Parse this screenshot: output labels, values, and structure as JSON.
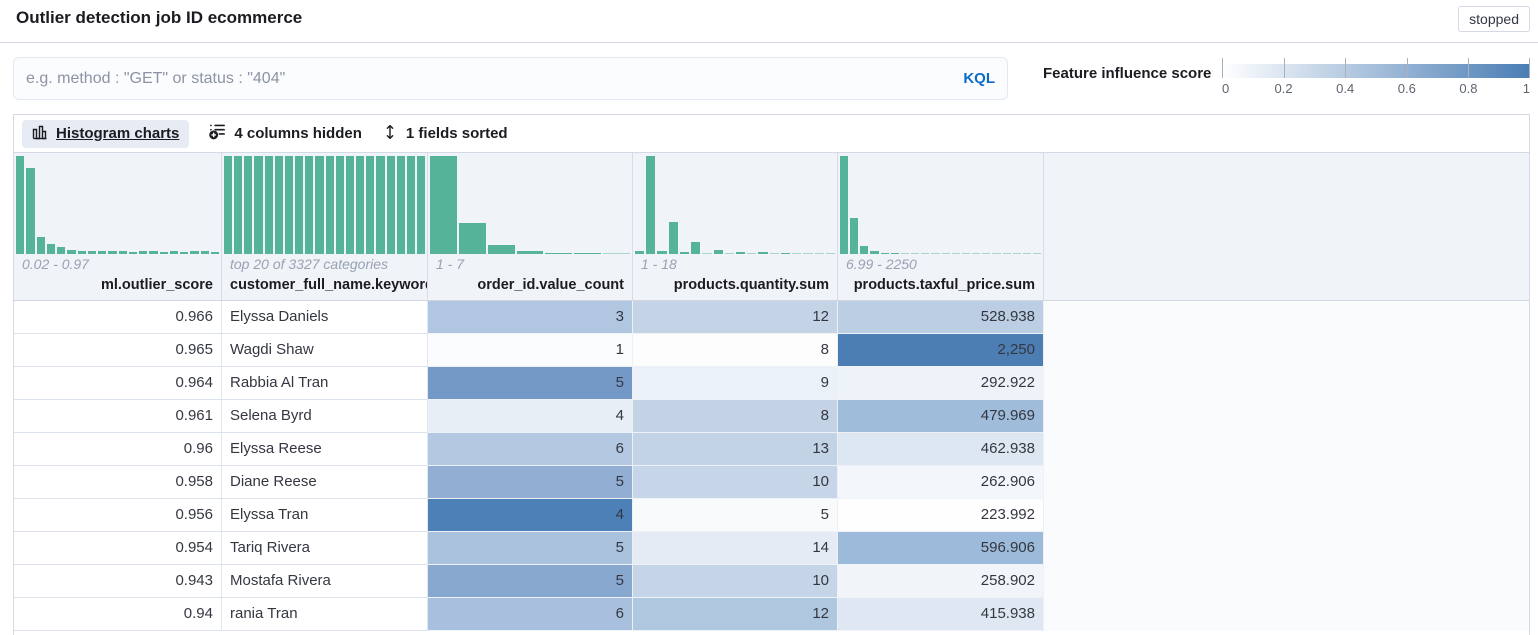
{
  "header": {
    "title": "Outlier detection job ID ecommerce",
    "status_badge": "stopped"
  },
  "query_bar": {
    "placeholder": "e.g. method : \"GET\" or status : \"404\"",
    "language": "KQL"
  },
  "legend": {
    "label": "Feature influence score",
    "ticks": [
      "0",
      "0.2",
      "0.4",
      "0.6",
      "0.8",
      "1"
    ],
    "gradient_start": "#ffffff",
    "gradient_end": "#4a7db5"
  },
  "toolbar": {
    "histogram_button": "Histogram charts",
    "columns_hidden": "4 columns hidden",
    "fields_sorted": "1 fields sorted"
  },
  "grid": {
    "bar_color": "#54b399",
    "columns": [
      {
        "label": "ml.outlier_score",
        "range": "0.02 - 0.97",
        "histogram": [
          100,
          88,
          17,
          10,
          7,
          4.5,
          3.5,
          3,
          2.8,
          2.6,
          2.6,
          2.2,
          2.6,
          2.6,
          2.2,
          2.6,
          2.2,
          2.6,
          2.6,
          1.6
        ]
      },
      {
        "label": "customer_full_name.keyword",
        "range": "top 20 of 3327 categories",
        "histogram": [
          100,
          100,
          100,
          100,
          100,
          100,
          100,
          100,
          100,
          100,
          100,
          100,
          100,
          100,
          100,
          100,
          100,
          100,
          100,
          100
        ]
      },
      {
        "label": "order_id.value_count",
        "range": "1 - 7",
        "histogram": [
          100,
          32,
          9,
          3.5,
          1.5,
          1,
          0.7
        ]
      },
      {
        "label": "products.quantity.sum",
        "range": "1 - 18",
        "histogram": [
          3,
          100,
          3,
          33,
          2,
          12,
          0.8,
          4,
          0.5,
          2.5,
          0.4,
          1.6,
          0.3,
          1.2,
          0.3,
          0.9,
          0.2,
          0.5
        ]
      },
      {
        "label": "products.taxful_price.sum",
        "range": "6.99 - 2250",
        "histogram": [
          100,
          37,
          8,
          3,
          1.5,
          1,
          0.2,
          0.2,
          0.2,
          0.2,
          0.2,
          0.2,
          0.2,
          0.2,
          0.2,
          0.2,
          0.2,
          0.2,
          0.2,
          0.8
        ]
      }
    ],
    "rows": [
      {
        "cells": [
          {
            "v": "0.966",
            "bg": "#ffffff"
          },
          {
            "v": "Elyssa Daniels",
            "bg": "#ffffff"
          },
          {
            "v": "3",
            "bg": "#b0c6e1"
          },
          {
            "v": "12",
            "bg": "#c4d3e6"
          },
          {
            "v": "528.938",
            "bg": "#bccee4"
          }
        ]
      },
      {
        "cells": [
          {
            "v": "0.965",
            "bg": "#ffffff"
          },
          {
            "v": "Wagdi Shaw",
            "bg": "#ffffff"
          },
          {
            "v": "1",
            "bg": "#fbfcfe"
          },
          {
            "v": "8",
            "bg": "#fdfdfe"
          },
          {
            "v": "2,250",
            "bg": "#4c7eb4"
          }
        ]
      },
      {
        "cells": [
          {
            "v": "0.964",
            "bg": "#ffffff"
          },
          {
            "v": "Rabbia Al Tran",
            "bg": "#ffffff"
          },
          {
            "v": "5",
            "bg": "#7599c7"
          },
          {
            "v": "9",
            "bg": "#ebf1f8"
          },
          {
            "v": "292.922",
            "bg": "#eef3f9"
          }
        ]
      },
      {
        "cells": [
          {
            "v": "0.961",
            "bg": "#ffffff"
          },
          {
            "v": "Selena Byrd",
            "bg": "#ffffff"
          },
          {
            "v": "4",
            "bg": "#e7eef6"
          },
          {
            "v": "8",
            "bg": "#c3d2e5"
          },
          {
            "v": "479.969",
            "bg": "#a0bcdb"
          }
        ]
      },
      {
        "cells": [
          {
            "v": "0.96",
            "bg": "#ffffff"
          },
          {
            "v": "Elyssa Reese",
            "bg": "#ffffff"
          },
          {
            "v": "6",
            "bg": "#b4c9e1"
          },
          {
            "v": "13",
            "bg": "#c2d3e6"
          },
          {
            "v": "462.938",
            "bg": "#dde7f2"
          }
        ]
      },
      {
        "cells": [
          {
            "v": "0.958",
            "bg": "#ffffff"
          },
          {
            "v": "Diane Reese",
            "bg": "#ffffff"
          },
          {
            "v": "5",
            "bg": "#92afd3"
          },
          {
            "v": "10",
            "bg": "#c6d5e7"
          },
          {
            "v": "262.906",
            "bg": "#f3f6fa"
          }
        ]
      },
      {
        "cells": [
          {
            "v": "0.956",
            "bg": "#ffffff"
          },
          {
            "v": "Elyssa Tran",
            "bg": "#ffffff"
          },
          {
            "v": "4",
            "bg": "#4d80b6"
          },
          {
            "v": "5",
            "bg": "#f8fafc"
          },
          {
            "v": "223.992",
            "bg": "#fefefe"
          }
        ]
      },
      {
        "cells": [
          {
            "v": "0.954",
            "bg": "#ffffff"
          },
          {
            "v": "Tariq Rivera",
            "bg": "#ffffff"
          },
          {
            "v": "5",
            "bg": "#aac2de"
          },
          {
            "v": "14",
            "bg": "#e4ebf4"
          },
          {
            "v": "596.906",
            "bg": "#9cbbda"
          }
        ]
      },
      {
        "cells": [
          {
            "v": "0.943",
            "bg": "#ffffff"
          },
          {
            "v": "Mostafa Rivera",
            "bg": "#ffffff"
          },
          {
            "v": "5",
            "bg": "#88a8d0"
          },
          {
            "v": "10",
            "bg": "#c5d4e7"
          },
          {
            "v": "258.902",
            "bg": "#f1f5fa"
          }
        ]
      },
      {
        "cells": [
          {
            "v": "0.94",
            "bg": "#ffffff"
          },
          {
            "v": "rania Tran",
            "bg": "#ffffff"
          },
          {
            "v": "6",
            "bg": "#a8c0dd"
          },
          {
            "v": "12",
            "bg": "#b0c7e0"
          },
          {
            "v": "415.938",
            "bg": "#dfe8f2"
          }
        ]
      }
    ]
  }
}
